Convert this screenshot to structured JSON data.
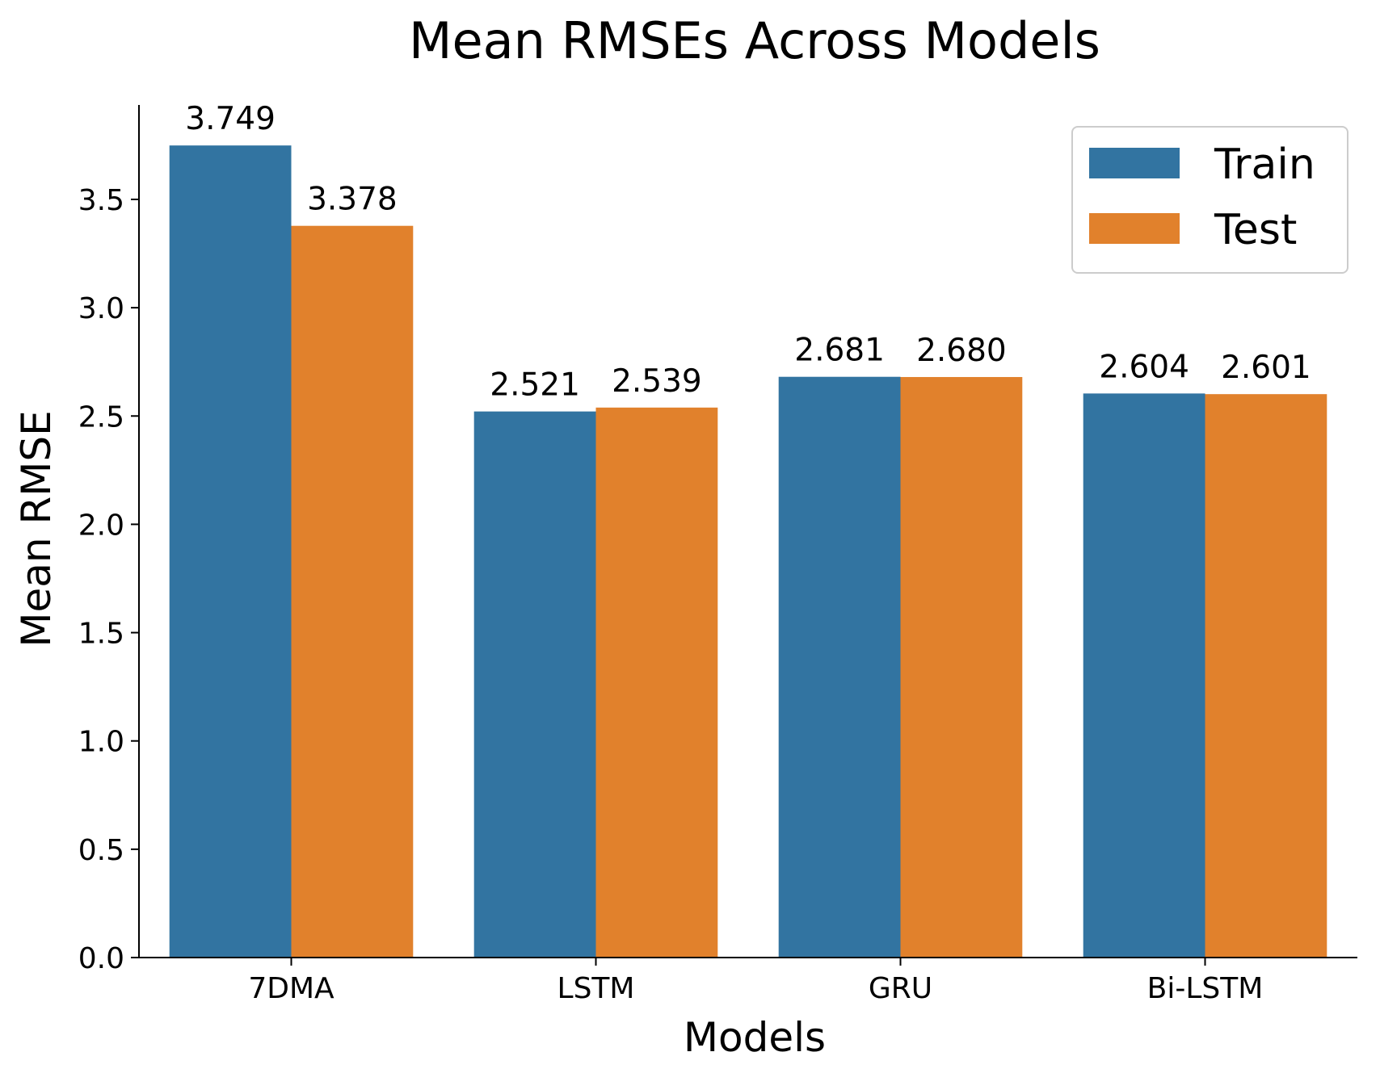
{
  "chart_data": {
    "type": "bar",
    "title": "Mean RMSEs Across Models",
    "xlabel": "Models",
    "ylabel": "Mean RMSE",
    "categories": [
      "7DMA",
      "LSTM",
      "GRU",
      "Bi-LSTM"
    ],
    "series": [
      {
        "name": "Train",
        "values": [
          3.749,
          2.521,
          2.681,
          2.604
        ],
        "labels": [
          "3.749",
          "2.521",
          "2.681",
          "2.604"
        ],
        "color": "#3274a1"
      },
      {
        "name": "Test",
        "values": [
          3.378,
          2.539,
          2.68,
          2.601
        ],
        "labels": [
          "3.378",
          "2.539",
          "2.680",
          "2.601"
        ],
        "color": "#e1812c"
      }
    ],
    "ylim": [
      0,
      3.936
    ],
    "yticks": [
      0.0,
      0.5,
      1.0,
      1.5,
      2.0,
      2.5,
      3.0,
      3.5
    ],
    "ytick_labels": [
      "0.0",
      "0.5",
      "1.0",
      "1.5",
      "2.0",
      "2.5",
      "3.0",
      "3.5"
    ],
    "grid": false,
    "legend_position": "top-right"
  }
}
